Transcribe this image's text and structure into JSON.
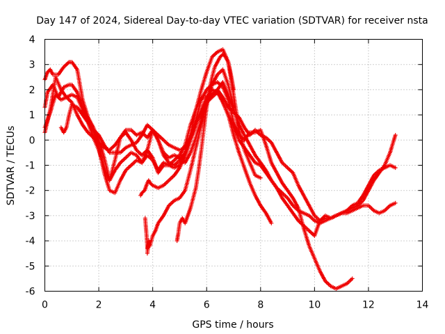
{
  "chart_data": {
    "type": "scatter",
    "title": "Day 147 of 2024, Sidereal Day-to-day VTEC variation (SDTVAR) for receiver nsta",
    "xlabel": "GPS time / hours",
    "ylabel": "SDTVAR / TECUs",
    "xlim": [
      0,
      14
    ],
    "ylim": [
      -6,
      4
    ],
    "xticks": [
      0,
      2,
      4,
      6,
      8,
      10,
      12,
      14
    ],
    "yticks": [
      -6,
      -5,
      -4,
      -3,
      -2,
      -1,
      0,
      1,
      2,
      3,
      4
    ],
    "grid": true,
    "marker": "+",
    "color": "#ee0000",
    "series": [
      {
        "name": "trace-1",
        "x": [
          0.0,
          0.1,
          0.2,
          0.3,
          0.5,
          0.7,
          0.9,
          1.0,
          1.2,
          1.4,
          1.6,
          1.8,
          2.0,
          2.2,
          2.4,
          2.6,
          2.8,
          3.0,
          3.2,
          3.4,
          3.6,
          3.8,
          4.0,
          4.2,
          4.4,
          4.6,
          4.8,
          5.0,
          5.2,
          5.4,
          5.6,
          5.8,
          6.0,
          6.2,
          6.4,
          6.6,
          6.8,
          7.0,
          7.2,
          7.4,
          7.6,
          7.8,
          8.0
        ],
        "y": [
          2.4,
          2.7,
          2.8,
          2.6,
          2.6,
          2.9,
          3.1,
          3.1,
          2.8,
          1.6,
          0.9,
          0.5,
          0.0,
          -0.7,
          -1.6,
          -0.8,
          0.1,
          0.4,
          0.4,
          0.2,
          0.3,
          0.1,
          0.4,
          0.0,
          -0.6,
          -0.9,
          -1.0,
          -0.8,
          -0.5,
          0.2,
          1.2,
          2.0,
          2.7,
          3.3,
          3.5,
          3.6,
          3.1,
          1.8,
          0.4,
          -0.4,
          -0.9,
          -1.4,
          -1.5
        ]
      },
      {
        "name": "trace-2",
        "x": [
          0.0,
          0.1,
          0.3,
          0.5,
          0.7,
          0.9,
          1.0,
          1.2,
          1.4,
          1.6,
          1.8,
          2.0,
          2.2,
          2.4,
          2.6,
          2.8,
          3.0,
          3.2,
          3.4,
          3.6,
          3.8,
          4.0,
          4.2,
          4.4,
          4.6,
          4.8,
          5.0,
          5.2,
          5.4,
          5.6,
          5.8,
          6.0,
          6.2,
          6.4,
          6.6,
          6.8,
          7.0,
          7.2,
          7.4,
          7.6,
          7.8,
          8.0,
          8.2,
          8.4,
          8.6,
          8.8,
          9.0,
          9.2,
          9.4,
          9.6,
          9.8,
          10.0,
          10.2,
          10.4,
          10.6,
          10.8,
          11.0,
          11.2,
          11.4
        ],
        "y": [
          1.3,
          1.9,
          2.2,
          1.7,
          2.1,
          2.2,
          2.2,
          1.9,
          1.3,
          0.7,
          0.1,
          -0.4,
          -1.1,
          -1.6,
          -1.2,
          -0.9,
          -0.7,
          -0.5,
          -0.6,
          -0.9,
          -0.4,
          -0.7,
          -1.3,
          -1.0,
          -1.0,
          -1.1,
          -1.0,
          -0.6,
          0.0,
          0.8,
          1.6,
          2.0,
          2.2,
          2.3,
          2.1,
          1.6,
          0.7,
          0.2,
          0.0,
          0.3,
          0.3,
          0.4,
          -0.2,
          -0.9,
          -1.3,
          -1.7,
          -2.0,
          -2.3,
          -2.7,
          -3.5,
          -4.2,
          -4.7,
          -5.2,
          -5.6,
          -5.8,
          -5.9,
          -5.8,
          -5.7,
          -5.5
        ]
      },
      {
        "name": "trace-3",
        "x": [
          0.0,
          0.2,
          0.4,
          0.6,
          0.8,
          1.0,
          1.2,
          1.4,
          1.6,
          1.8,
          2.0,
          2.2,
          2.4,
          2.6,
          2.8,
          3.0,
          3.2,
          3.4,
          3.6,
          3.8,
          4.0,
          4.2,
          4.4,
          4.6,
          4.8,
          5.0,
          5.2,
          5.4,
          5.6,
          5.8,
          6.0,
          6.2,
          6.4,
          6.6,
          6.8,
          7.0,
          7.2,
          7.4,
          7.6,
          7.8,
          8.0,
          8.2,
          8.4,
          8.6,
          8.8,
          9.0,
          9.2,
          9.4,
          9.6,
          9.8,
          10.0,
          10.2,
          10.4,
          10.6,
          10.8,
          11.0,
          11.2,
          11.4,
          11.6,
          11.8,
          12.0,
          12.2,
          12.4,
          12.6,
          12.8,
          13.0
        ],
        "y": [
          0.5,
          1.1,
          1.8,
          1.6,
          1.7,
          1.8,
          1.7,
          1.2,
          0.9,
          0.4,
          -0.3,
          -1.3,
          -2.0,
          -2.1,
          -1.6,
          -1.2,
          -1.0,
          -0.8,
          -0.9,
          -0.6,
          -0.8,
          -1.2,
          -0.9,
          -1.0,
          -0.8,
          -0.6,
          -0.2,
          0.6,
          1.2,
          1.7,
          1.7,
          1.8,
          2.0,
          2.3,
          1.8,
          1.2,
          0.6,
          0.2,
          -0.2,
          -0.6,
          -0.9,
          -1.2,
          -1.6,
          -1.9,
          -2.3,
          -2.6,
          -2.9,
          -3.2,
          -3.4,
          -3.6,
          -3.8,
          -3.2,
          -3.0,
          -3.1,
          -3.0,
          -2.9,
          -2.8,
          -2.7,
          -2.6,
          -2.4,
          -2.0,
          -1.6,
          -1.3,
          -1.0,
          -0.5,
          0.2
        ]
      },
      {
        "name": "trace-4",
        "x": [
          0.0,
          0.2,
          0.4,
          0.6,
          0.8,
          1.0,
          1.2,
          1.4,
          1.6,
          1.8,
          2.0,
          2.2,
          2.4,
          2.6,
          2.8,
          3.0,
          3.2,
          3.4,
          3.6,
          3.8,
          4.0,
          4.2,
          4.4,
          4.6,
          4.8,
          5.0,
          5.2,
          5.4,
          5.6,
          5.8,
          6.0,
          6.2,
          6.4,
          6.6,
          6.8,
          7.0,
          7.2,
          7.4,
          7.6,
          7.8,
          8.0,
          8.2,
          8.4,
          8.6,
          8.8,
          9.0,
          9.2,
          9.4,
          9.6,
          9.8,
          10.0,
          10.2,
          10.4,
          10.6,
          10.8,
          11.0,
          11.2,
          11.4,
          11.6,
          11.8,
          12.0,
          12.2,
          12.4,
          12.6,
          12.8,
          13.0
        ],
        "y": [
          0.3,
          1.2,
          2.5,
          2.0,
          1.7,
          1.5,
          1.0,
          0.6,
          0.3,
          0.1,
          -0.1,
          -0.3,
          -0.4,
          -0.2,
          0.1,
          0.3,
          0.0,
          -0.4,
          -0.6,
          -0.4,
          0.4,
          0.0,
          -0.5,
          -0.7,
          -0.6,
          -0.7,
          -0.9,
          -0.5,
          0.1,
          0.8,
          1.5,
          1.8,
          2.0,
          1.7,
          1.3,
          1.1,
          0.9,
          0.5,
          0.2,
          0.4,
          0.2,
          0.1,
          -0.1,
          -0.5,
          -0.9,
          -1.1,
          -1.3,
          -1.8,
          -2.2,
          -2.6,
          -3.0,
          -3.2,
          -3.1,
          -3.1,
          -3.0,
          -2.9,
          -2.9,
          -2.8,
          -2.7,
          -2.6,
          -2.6,
          -2.8,
          -2.9,
          -2.8,
          -2.6,
          -2.5
        ]
      },
      {
        "name": "trace-5",
        "x": [
          0.6,
          0.7,
          0.8,
          0.9,
          1.0,
          1.2,
          1.4,
          1.6,
          1.8,
          2.0,
          2.2,
          2.4,
          2.6,
          2.8,
          3.0,
          3.2,
          3.4,
          3.6,
          3.8,
          4.0,
          4.2,
          4.4,
          4.6,
          4.8,
          5.0,
          5.2,
          5.4,
          5.6,
          5.8,
          6.0,
          6.2,
          6.4,
          6.6,
          6.8,
          7.0,
          7.2,
          7.4,
          7.6,
          7.8,
          8.0,
          8.2,
          8.4,
          8.6,
          8.8,
          9.0,
          9.2,
          9.4,
          9.6,
          9.8,
          10.0,
          10.2,
          10.4,
          10.6,
          10.8,
          11.0,
          11.2,
          11.4,
          11.6,
          11.8,
          12.0,
          12.2,
          12.4,
          12.6,
          12.8,
          13.0
        ],
        "y": [
          0.5,
          0.3,
          0.5,
          1.0,
          1.4,
          1.3,
          1.0,
          0.7,
          0.4,
          0.2,
          -0.2,
          -0.5,
          -0.5,
          -0.5,
          -0.3,
          -0.2,
          -0.1,
          0.2,
          0.6,
          0.4,
          0.2,
          0.0,
          -0.2,
          -0.3,
          -0.4,
          -0.3,
          0.1,
          0.6,
          1.2,
          1.7,
          2.0,
          1.9,
          1.5,
          1.0,
          0.5,
          0.0,
          -0.3,
          -0.6,
          -0.9,
          -1.0,
          -1.3,
          -1.6,
          -1.9,
          -2.1,
          -2.3,
          -2.6,
          -2.8,
          -2.9,
          -3.0,
          -3.2,
          -3.3,
          -3.2,
          -3.1,
          -3.0,
          -2.9,
          -2.8,
          -2.6,
          -2.5,
          -2.2,
          -1.8,
          -1.4,
          -1.2,
          -1.1,
          -1.0,
          -1.1
        ]
      },
      {
        "name": "trace-6",
        "x": [
          3.55,
          3.6,
          3.7,
          3.8,
          3.85,
          3.9,
          4.0,
          4.2,
          4.4,
          4.6,
          4.8,
          5.0,
          5.2,
          5.4,
          5.6,
          5.8,
          6.0,
          6.2,
          6.4,
          6.6,
          6.8,
          7.0,
          7.2,
          7.4,
          7.6,
          7.8,
          8.0,
          8.2,
          8.4
        ],
        "y": [
          -2.2,
          -2.1,
          -2.0,
          -1.7,
          -1.6,
          -1.7,
          -1.8,
          -1.9,
          -1.8,
          -1.6,
          -1.4,
          -1.1,
          -0.6,
          0.0,
          0.6,
          1.1,
          1.5,
          1.7,
          1.9,
          1.5,
          1.0,
          0.2,
          -0.5,
          -1.1,
          -1.7,
          -2.2,
          -2.6,
          -2.9,
          -3.3
        ]
      },
      {
        "name": "trace-7",
        "x": [
          3.8,
          3.85,
          3.9,
          4.0,
          4.1,
          4.2,
          4.4,
          4.6,
          4.8,
          5.0,
          5.2,
          5.4,
          5.6,
          5.8,
          6.0,
          6.2,
          6.4,
          6.6,
          6.8,
          7.0
        ],
        "y": [
          -4.5,
          -4.0,
          -4.2,
          -3.8,
          -3.6,
          -3.3,
          -3.0,
          -2.6,
          -2.4,
          -2.3,
          -2.0,
          -1.2,
          -0.3,
          0.6,
          1.5,
          2.2,
          2.6,
          2.8,
          2.2,
          1.3
        ]
      },
      {
        "name": "trace-8",
        "x": [
          3.72,
          3.75,
          3.78,
          3.8,
          3.83
        ],
        "y": [
          -3.1,
          -3.5,
          -3.9,
          -4.3,
          -4.2
        ]
      },
      {
        "name": "trace-9",
        "x": [
          4.9,
          4.95,
          5.0,
          5.1,
          5.2,
          5.3,
          5.4,
          5.5,
          5.6,
          5.7,
          5.8,
          5.9,
          6.0,
          6.1,
          6.2,
          6.3,
          6.4,
          6.5,
          6.6,
          6.7,
          6.8,
          6.9,
          7.0
        ],
        "y": [
          -4.0,
          -3.7,
          -3.3,
          -3.1,
          -3.3,
          -3.0,
          -2.7,
          -2.3,
          -1.9,
          -1.2,
          -0.4,
          0.5,
          1.3,
          2.0,
          2.5,
          2.9,
          3.1,
          3.3,
          3.4,
          3.3,
          3.1,
          2.6,
          2.0
        ]
      }
    ]
  }
}
